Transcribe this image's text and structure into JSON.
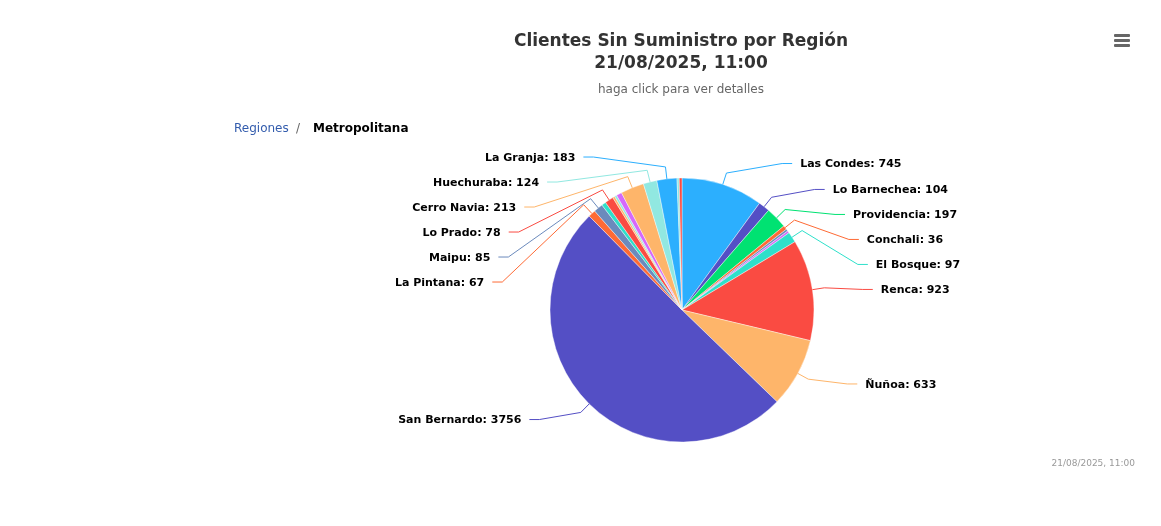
{
  "chart_data": {
    "type": "pie",
    "title": "Clientes Sin Suministro por Región\n21/08/2025, 11:00",
    "subtitle": "haga click para ver detalles",
    "annotations": [
      "Regiones",
      "/",
      "Metropolitana",
      "21/08/2025, 11:00"
    ],
    "categories": [
      "Las Condes",
      "Lo Barnechea",
      "Providencia",
      "Conchali",
      null,
      null,
      "El Bosque",
      "Renca",
      "Ñuñoa",
      "San Bernardo",
      "La Pintana",
      "Maipu",
      null,
      "Lo Prado",
      null,
      null,
      null,
      "Cerro Navia",
      "Huechuraba",
      "La Granja",
      null,
      null
    ],
    "values": [
      745,
      104,
      197,
      36,
      20,
      20,
      97,
      923,
      633,
      3756,
      67,
      85,
      40,
      78,
      20,
      20,
      50,
      213,
      124,
      183,
      20,
      25
    ],
    "value_labels": [
      "745",
      "104",
      "197",
      "36",
      null,
      null,
      "97",
      "923",
      "633",
      "3756",
      "67",
      "85",
      null,
      "78",
      null,
      null,
      null,
      "213",
      "124",
      "183",
      null,
      null
    ],
    "colors": [
      "#2caffe",
      "#544fc5",
      "#00e272",
      "#fe6a35",
      "#6b8abc",
      "#d568fb",
      "#2ee0ca",
      "#fa4b42",
      "#feb56a",
      "#544fc5",
      "#fe6a35",
      "#6b8abc",
      "#2ee0ca",
      "#fa4b42",
      "#feb56a",
      "#91e8e1",
      "#d568fb",
      "#feb56a",
      "#91e8e1",
      "#2caffe",
      "#91e8e1",
      "#fa4b42"
    ],
    "legend": false
  }
}
